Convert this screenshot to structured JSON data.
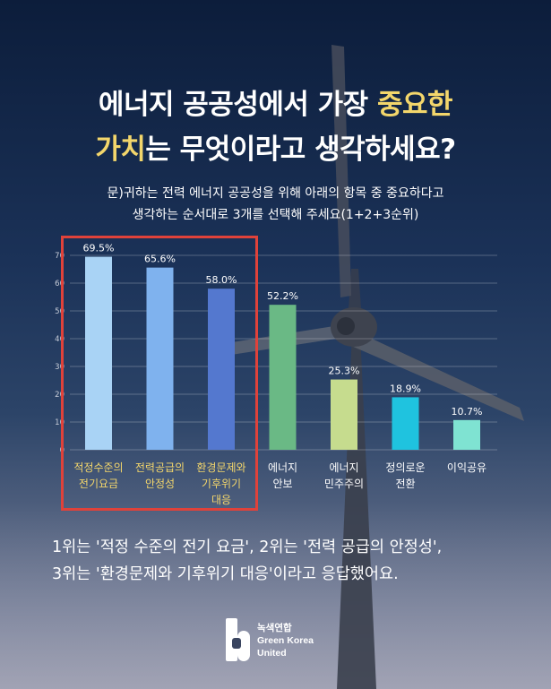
{
  "title_part1": "에너지 공공성에서 가장 ",
  "title_highlight1": "중요한",
  "title_highlight2": "가치",
  "title_part2": "는 무엇이라고 생각하세요?",
  "subtitle_line1": "문)귀하는 전력 에너지 공공성을 위해 아래의 항목 중 중요하다고",
  "subtitle_line2": "생각하는 순서대로 3개를 선택해 주세요(1+2+3순위)",
  "conclusion_line1": "1위는 '적정 수준의 전기 요금', 2위는 '전력 공급의 안정성',",
  "conclusion_line2": "3위는 '환경문제와 기후위기 대응'이라고 응답했어요.",
  "logo": {
    "name_ko": "녹색연합",
    "name_en_line1": "Green Korea",
    "name_en_line2": "United"
  },
  "colors": {
    "highlight_text": "#f3d66b",
    "highlight_box": "#e0423a"
  },
  "chart_data": {
    "type": "bar",
    "categories": [
      [
        "적정수준의",
        "전기요금"
      ],
      [
        "전력공급의",
        "안정성"
      ],
      [
        "환경문제와",
        "기후위기",
        "대응"
      ],
      [
        "에너지",
        "안보"
      ],
      [
        "에너지",
        "민주주의"
      ],
      [
        "정의로운",
        "전환"
      ],
      [
        "이익공유"
      ]
    ],
    "values": [
      69.5,
      65.6,
      58.0,
      52.2,
      25.3,
      18.9,
      10.7
    ],
    "data_labels": [
      "69.5%",
      "65.6%",
      "58.0%",
      "52.2%",
      "25.3%",
      "18.9%",
      "10.7%"
    ],
    "bar_colors": [
      "#a9d3f5",
      "#7fb2ee",
      "#5478cf",
      "#6ab985",
      "#c6dc8e",
      "#1fc3df",
      "#7fe3d2"
    ],
    "category_label_colors": [
      "#f3d66b",
      "#f3d66b",
      "#f3d66b",
      "#ffffff",
      "#ffffff",
      "#ffffff",
      "#ffffff"
    ],
    "yticks": [
      "0",
      "10",
      "20",
      "30",
      "40",
      "50",
      "60",
      "70"
    ],
    "ylim": [
      0,
      70
    ],
    "grid": true,
    "highlighted_categories": 3
  }
}
